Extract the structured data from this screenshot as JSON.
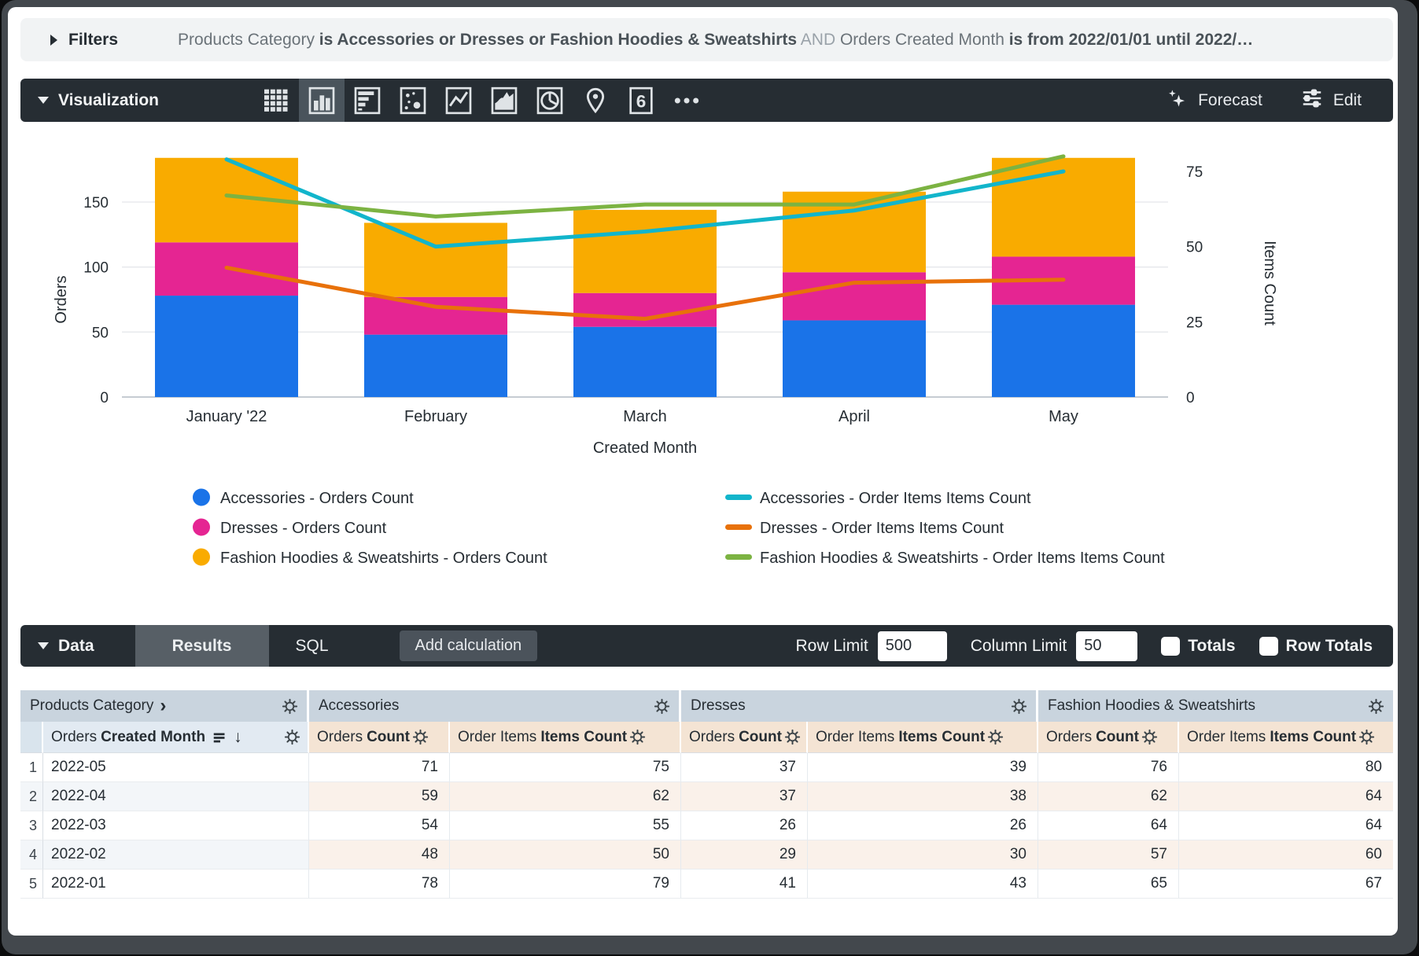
{
  "filters": {
    "label": "Filters",
    "segments": [
      {
        "text": "Products Category ",
        "style": "normal"
      },
      {
        "text": "is Accessories or Dresses or Fashion Hoodies & Sweatshirts",
        "style": "bold"
      },
      {
        "text": " AND ",
        "style": "and"
      },
      {
        "text": "Orders Created Month ",
        "style": "normal"
      },
      {
        "text": "is from 2022/01/01 until 2022/…",
        "style": "bold"
      }
    ]
  },
  "viz": {
    "label": "Visualization",
    "icons": [
      {
        "name": "table-chart-icon",
        "selected": false
      },
      {
        "name": "column-chart-icon",
        "selected": true
      },
      {
        "name": "bar-chart-icon",
        "selected": false
      },
      {
        "name": "scatter-chart-icon",
        "selected": false
      },
      {
        "name": "line-chart-icon",
        "selected": false
      },
      {
        "name": "area-chart-icon",
        "selected": false
      },
      {
        "name": "pie-chart-icon",
        "selected": false
      },
      {
        "name": "map-pin-icon",
        "selected": false
      },
      {
        "name": "single-value-icon",
        "selected": false
      },
      {
        "name": "more-icon",
        "selected": false
      }
    ],
    "single_value_glyph": "6",
    "forecast_label": "Forecast",
    "edit_label": "Edit"
  },
  "chart_data": {
    "type": "bar",
    "subtype": "stacked-columns-with-dual-axis-lines",
    "categories": [
      "January '22",
      "February",
      "March",
      "April",
      "May"
    ],
    "stacked": true,
    "grid": true,
    "legend_position": "bottom",
    "xlabel": "Created Month",
    "left_axis": {
      "title": "Orders",
      "ticks": [
        0,
        50,
        100,
        150
      ],
      "max": 186
    },
    "right_axis": {
      "title": "Items Count",
      "ticks": [
        0,
        25,
        50,
        75
      ],
      "max": 87
    },
    "bar_series": [
      {
        "name": "Accessories - Orders Count",
        "color": "#1A73E8",
        "values": [
          78,
          48,
          54,
          59,
          71
        ]
      },
      {
        "name": "Dresses - Orders Count",
        "color": "#E52592",
        "values": [
          41,
          29,
          26,
          37,
          37
        ]
      },
      {
        "name": "Fashion Hoodies & Sweatshirts - Orders Count",
        "color": "#F9AB00",
        "values": [
          65,
          57,
          64,
          62,
          76
        ]
      }
    ],
    "line_series": [
      {
        "name": "Accessories - Order Items Items Count",
        "color": "#12B5CB",
        "values": [
          79,
          50,
          55,
          62,
          75
        ]
      },
      {
        "name": "Dresses - Order Items Items Count",
        "color": "#E8710A",
        "values": [
          43,
          30,
          26,
          38,
          39
        ]
      },
      {
        "name": "Fashion Hoodies & Sweatshirts - Order Items Items Count",
        "color": "#7CB342",
        "values": [
          67,
          60,
          64,
          64,
          80
        ]
      }
    ]
  },
  "data_bar": {
    "label": "Data",
    "tabs": [
      {
        "label": "Results",
        "selected": true
      },
      {
        "label": "SQL",
        "selected": false
      }
    ],
    "add_calculation_label": "Add calculation",
    "row_limit_label": "Row Limit",
    "row_limit_value": "500",
    "column_limit_label": "Column Limit",
    "column_limit_value": "50",
    "totals_label": "Totals",
    "row_totals_label": "Row Totals",
    "totals_checked": false,
    "row_totals_checked": false
  },
  "table": {
    "groups": [
      {
        "label": "Products Category",
        "chevron": "›"
      },
      {
        "label": "Accessories"
      },
      {
        "label": "Dresses"
      },
      {
        "label": "Fashion Hoodies & Sweatshirts"
      }
    ],
    "dimension_header": {
      "prefix": "Orders",
      "bold": "Created Month"
    },
    "measure_headers": [
      {
        "prefix": "Orders",
        "bold": "Count"
      },
      {
        "prefix": "Order Items",
        "bold": "Items Count"
      }
    ],
    "rows": [
      {
        "n": "1",
        "month": "2022-05",
        "values": [
          "71",
          "75",
          "37",
          "39",
          "76",
          "80"
        ]
      },
      {
        "n": "2",
        "month": "2022-04",
        "values": [
          "59",
          "62",
          "37",
          "38",
          "62",
          "64"
        ]
      },
      {
        "n": "3",
        "month": "2022-03",
        "values": [
          "54",
          "55",
          "26",
          "26",
          "64",
          "64"
        ]
      },
      {
        "n": "4",
        "month": "2022-02",
        "values": [
          "48",
          "50",
          "29",
          "30",
          "57",
          "60"
        ]
      },
      {
        "n": "5",
        "month": "2022-01",
        "values": [
          "78",
          "79",
          "41",
          "43",
          "65",
          "67"
        ]
      }
    ]
  },
  "colors": {
    "toolbar_bg": "#262d33",
    "selected_icon_bg": "#4a545c",
    "filters_bg": "#f1f3f4",
    "group_header_bg": "#c9d4de",
    "dimension_header_bg": "#e2eaf2",
    "measure_header_bg": "#f4e4d4",
    "accent_blue": "#1A73E8",
    "accent_pink": "#E52592",
    "accent_amber": "#F9AB00",
    "accent_cyan": "#12B5CB",
    "accent_orange": "#E8710A",
    "accent_green": "#7CB342"
  }
}
